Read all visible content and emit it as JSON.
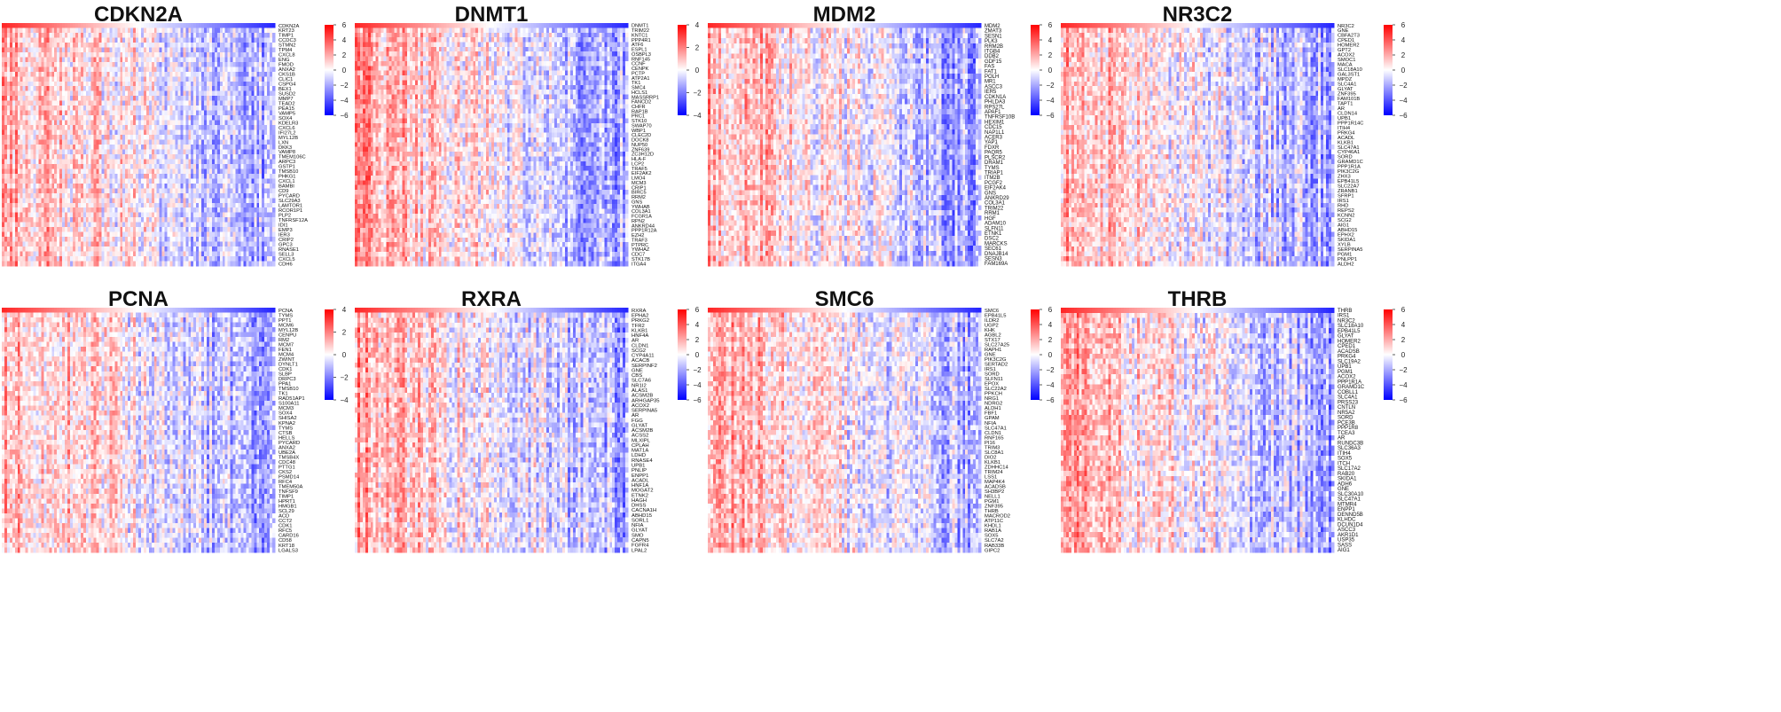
{
  "figure": {
    "colormap": {
      "low": "#0000ff",
      "mid": "#ffffff",
      "high": "#ff0000"
    },
    "panels": [
      {
        "title": "CDKN2A",
        "colorbar_ticks": [
          6,
          4,
          2,
          0,
          -2,
          -4,
          -6
        ],
        "range": [
          -6,
          6
        ],
        "genes": [
          "CDKN2A",
          "KRT23",
          "TIMP1",
          "CCDC3",
          "STMN2",
          "TPM4",
          "CXCL8",
          "ENG",
          "FMOD",
          "ANXA2",
          "CKS1B",
          "CLIC1",
          "CSPG4",
          "BEX1",
          "SUSD2",
          "MMP7",
          "TEAD2",
          "PEA15",
          "VAMP5",
          "SOX4",
          "KDELR3",
          "CXCL6",
          "IFI27L2",
          "MYL12B",
          "LXN",
          "DKK3",
          "VAMP8",
          "TMEM106C",
          "ARPC3",
          "GSTP1",
          "TMSB10",
          "PHKG1",
          "CXCL1",
          "BAMBI",
          "CD9",
          "PYCARD",
          "SLC29A3",
          "LAMTOR1",
          "RCOR1P1",
          "PLP2",
          "TNFRSF12A",
          "IDI1",
          "EMP3",
          "IER3",
          "CRIP2",
          "GPC3",
          "RNASE1",
          "SELL3",
          "CXCL5",
          "CDH6"
        ]
      },
      {
        "title": "DNMT1",
        "colorbar_ticks": [
          4,
          2,
          0,
          -2,
          -4
        ],
        "range": [
          -4,
          4
        ],
        "genes": [
          "DNMT1",
          "TRIM22",
          "KNTC1",
          "PPP4R1",
          "ATF6",
          "ESPL1",
          "OSBPL3",
          "RNF145",
          "CCNF",
          "CENPK",
          "PCTP",
          "ATP2A1",
          "TK1",
          "SMC4",
          "HCLS1",
          "MASSRRP1",
          "FANCD2",
          "CHFR",
          "RAP1B",
          "PRC1",
          "STK10",
          "SWAP70",
          "WBP1",
          "CLEC2D",
          "DOCK8",
          "NUP50",
          "ZNF639",
          "ZC3H12D",
          "HLA-F",
          "LCP2",
          "TRAF5",
          "EIF2AK2",
          "LMO4",
          "MCM3",
          "CRIP1",
          "BIRC5",
          "RRM2",
          "GNS",
          "YWHAB",
          "COL3A1",
          "FCGR1A",
          "RPN2",
          "ANKRD44",
          "PPP1R12A",
          "EZH2",
          "TRAF3",
          "PTPRC",
          "YWHAZ",
          "CDC7",
          "STK17B",
          "ITGA4"
        ]
      },
      {
        "title": "MDM2",
        "colorbar_ticks": [
          6,
          4,
          2,
          0,
          -2,
          -4,
          -6
        ],
        "range": [
          -6,
          6
        ],
        "genes": [
          "MDM2",
          "ZMAT3",
          "SESN1",
          "PLK3",
          "RRM2B",
          "ITGB4",
          "DDB2",
          "GDF15",
          "FAS",
          "FAT1",
          "POLH",
          "MR1",
          "ASCC3",
          "IER5",
          "CDKN1A",
          "PHLDA3",
          "RPS27L",
          "APAF1",
          "TNFRSF10B",
          "HEXIM1",
          "CDC15",
          "NAP1L1",
          "ACER3",
          "YAP1",
          "FDXR",
          "PAQR5",
          "PLSCR2",
          "DRAM1",
          "TYMS",
          "TRIAP1",
          "ITM2B",
          "PCGF2",
          "EIF2AK4",
          "GNS",
          "ANKRD29",
          "COL3A1",
          "TRIM22",
          "RRM1",
          "HGF",
          "ADAM10",
          "SLFN11",
          "ETNK1",
          "DSC2",
          "MARCKS",
          "SEC61",
          "DNAJB14",
          "SESN3",
          "FAM169A"
        ]
      },
      {
        "title": "NR3C2",
        "colorbar_ticks": [
          6,
          4,
          2,
          0,
          -2,
          -4,
          -6
        ],
        "range": [
          -6,
          6
        ],
        "genes": [
          "NR3C2",
          "GNE",
          "CBFA2T3",
          "CPED1",
          "HOMER2",
          "GPT2",
          "ACOX2",
          "SMOC1",
          "MACA",
          "SLC18A10",
          "GAL3ST1",
          "MPDZ",
          "SLC4A1",
          "GLYAT",
          "ZNF395",
          "FAM101B",
          "TAPT1",
          "AR",
          "CLDN14",
          "UPB1",
          "PPP1R14C",
          "ITIH4",
          "PRKG4",
          "ACADL",
          "KLKB1",
          "SLC47A1",
          "CYP46A1",
          "SORD",
          "GRAMD1C",
          "PPP1R1A",
          "PIK3C2G",
          "ZHX3",
          "EPB41L5",
          "SLC22A7",
          "ZRANB1",
          "SFRP1",
          "IRS1",
          "RHD",
          "REPS2",
          "KCNN2",
          "SCG2",
          "AIG1",
          "ABHD15",
          "EPHX2",
          "SKIDA1",
          "XYLB",
          "SERPINA5",
          "PGM1",
          "PNLPP1",
          "ALDH2"
        ]
      },
      {
        "title": "PCNA",
        "colorbar_ticks": [
          4,
          2,
          0,
          -2,
          -4
        ],
        "range": [
          -4,
          4
        ],
        "genes": [
          "PCNA",
          "TYMS",
          "PPT1",
          "MCM6",
          "MYL12B",
          "CENPU",
          "RM2",
          "MCM7",
          "FEN1",
          "MCM4",
          "ZWINT",
          "DYNLT1",
          "CDK1",
          "SLBP",
          "DRPC3",
          "PPA1",
          "TMSB10",
          "TK1",
          "RAD51AP1",
          "S100A11",
          "MCM3",
          "SOX4",
          "SHISA2",
          "KPNA2",
          "TYMS",
          "CTSB",
          "HELLS",
          "PYCARD",
          "ANXA2",
          "UBE2A",
          "TMSB4X",
          "CDC48",
          "PTTG1",
          "CKS2",
          "PSMD14",
          "RFC4",
          "TMEM50A",
          "TNFSF9",
          "TIMP1",
          "HPRT1",
          "HMGB1",
          "SCL29",
          "ACD",
          "CCT2",
          "CDK1",
          "RFC5",
          "CARD16",
          "CD58",
          "KRT18",
          "LGALS3"
        ]
      },
      {
        "title": "RXRA",
        "colorbar_ticks": [
          6,
          4,
          2,
          0,
          -2,
          -4,
          -6
        ],
        "range": [
          -6,
          6
        ],
        "genes": [
          "RXRA",
          "EPHA2",
          "PRKG2",
          "TFR2",
          "KLKB1",
          "HNF4A",
          "AR",
          "CLDN1",
          "SCG2",
          "CYP4A11",
          "ACACB",
          "SERPINF2",
          "GNE",
          "CBS",
          "SLC7A6",
          "NR1I2",
          "ALAS1",
          "ACSM2B",
          "ARHGAP35",
          "ACOX2",
          "SERPINA5",
          "AR",
          "FGG",
          "GLYAT",
          "ACSM2B",
          "ACSS2",
          "MLXIPL",
          "CPLAH",
          "MAT1A",
          "LDHD",
          "RNASE4",
          "UPB1",
          "PNLIP",
          "ENPP1",
          "ACADL",
          "HNF1A",
          "MOGAT2",
          "ETNK2",
          "HAGH",
          "DHSS",
          "CACNA1H",
          "ABHD15",
          "SORL1",
          "NFIA",
          "GLYAT",
          "SMO",
          "CAPN5",
          "FGFR4",
          "LPAL2"
        ]
      },
      {
        "title": "SMC6",
        "colorbar_ticks": [
          6,
          4,
          2,
          0,
          -2,
          -4,
          -6
        ],
        "range": [
          -6,
          6
        ],
        "genes": [
          "SMC6",
          "EPB41L5",
          "ILDR2",
          "UGP2",
          "KHK",
          "AGBL2",
          "STX17",
          "SLC27A25",
          "RAPH1",
          "GNE",
          "PIK3C2G",
          "SERTAD2",
          "IRS1",
          "SORD",
          "SLFN11",
          "EPOX",
          "SLC22A2",
          "PPKCH",
          "NRG1",
          "NDRG2",
          "ALDH1",
          "FBF1",
          "GPAM",
          "NFIA",
          "SLC47A1",
          "CLDN1",
          "RNF165",
          "PI16",
          "TRIM3",
          "SLC8A1",
          "DIO2",
          "KLKB1",
          "ZDHHC14",
          "TRIM24",
          "LSS1",
          "MAP4K4",
          "ACADSB",
          "SH3BP2",
          "NELL1",
          "PGM1",
          "ZNF395",
          "THRB",
          "MACROD2",
          "ATP11C",
          "KHDL1",
          "RAB1A",
          "SOX5",
          "SLC7A2",
          "RAB33B",
          "GIPC2"
        ]
      },
      {
        "title": "THRB",
        "colorbar_ticks": [
          6,
          4,
          2,
          0,
          -2,
          -4,
          -6
        ],
        "range": [
          -6,
          6
        ],
        "genes": [
          "THRB",
          "IRS1",
          "NR3C2",
          "SLC18A10",
          "EPB41L5",
          "GLYAT",
          "HOMER2",
          "CPED1",
          "ACADSB",
          "PRKG4",
          "SLC19A2",
          "UPB1",
          "PGM1",
          "ACOX2",
          "PPP1R1A",
          "GRAMD1C",
          "COBLL1",
          "SLC4A1",
          "PRSS23",
          "CNTLN",
          "NR5A2",
          "SORD",
          "PCE3B",
          "PPP1R8",
          "TCEA3",
          "AR",
          "RUNDC3B",
          "SLC36A3",
          "ITIH4",
          "SOX5",
          "ITCH",
          "SLC17A2",
          "RAB20",
          "SKIDA1",
          "ADH6",
          "GNE",
          "SLC30A10",
          "SLC47A1",
          "MTMR4",
          "ENPP1",
          "DENND5B",
          "KLHDC",
          "DCUN1D4",
          "ASCC3",
          "AKR1D1",
          "USP35",
          "SASS",
          "AIG1"
        ]
      }
    ]
  }
}
